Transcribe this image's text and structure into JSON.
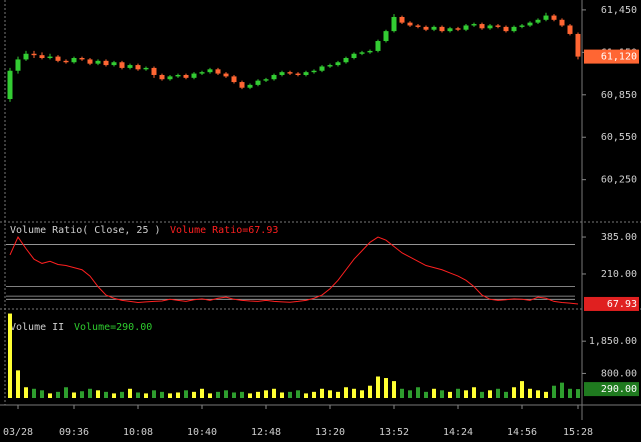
{
  "chart_data": [
    {
      "type": "candlestick",
      "up_color": "#33cc33",
      "down_color": "#ff6633",
      "ylim": [
        59965,
        61520
      ],
      "yticks": [
        {
          "value": 61450,
          "label": "61,450"
        },
        {
          "value": 61150,
          "label": "61,150"
        },
        {
          "value": 60850,
          "label": "60,850"
        },
        {
          "value": 60550,
          "label": "60,550"
        },
        {
          "value": 60250,
          "label": "60,250"
        }
      ],
      "current": {
        "value": 61120,
        "label": "61,120",
        "color": "#ff6633"
      },
      "open": [
        60820,
        61020,
        61100,
        61140,
        61130,
        61110,
        61120,
        61090,
        61080,
        61110,
        61100,
        61070,
        61090,
        61060,
        61080,
        61040,
        61060,
        61030,
        61040,
        60990,
        60960,
        60980,
        60990,
        60970,
        61000,
        61010,
        61030,
        61000,
        60980,
        60940,
        60900,
        60920,
        60950,
        60960,
        60990,
        61010,
        61000,
        60990,
        61010,
        61020,
        61050,
        61060,
        61080,
        61110,
        61140,
        61150,
        61160,
        61230,
        61300,
        61400,
        61360,
        61340,
        61330,
        61310,
        61330,
        61300,
        61320,
        61310,
        61340,
        61350,
        61320,
        61340,
        61330,
        61300,
        61330,
        61340,
        61360,
        61380,
        61410,
        61380,
        61340,
        61280
      ],
      "high": [
        61040,
        61120,
        61160,
        61160,
        61150,
        61140,
        61130,
        61100,
        61120,
        61120,
        61110,
        61100,
        61100,
        61090,
        61090,
        61070,
        61070,
        61050,
        61050,
        61000,
        60990,
        61000,
        61000,
        61010,
        61020,
        61040,
        61040,
        61010,
        60990,
        60950,
        60930,
        60960,
        60970,
        61000,
        61020,
        61020,
        61010,
        61020,
        61030,
        61060,
        61070,
        61090,
        61120,
        61150,
        61160,
        61170,
        61240,
        61310,
        61420,
        61410,
        61370,
        61350,
        61340,
        61340,
        61340,
        61330,
        61330,
        61350,
        61360,
        61360,
        61350,
        61350,
        61340,
        61340,
        61350,
        61370,
        61390,
        61430,
        61420,
        61390,
        61350,
        61290
      ],
      "low": [
        60800,
        61000,
        61090,
        61110,
        61100,
        61100,
        61080,
        61070,
        61070,
        61090,
        61060,
        61060,
        61050,
        61050,
        61030,
        61030,
        61020,
        61020,
        60970,
        60950,
        60950,
        60970,
        60960,
        60960,
        60990,
        61000,
        60990,
        60970,
        60930,
        60890,
        60890,
        60910,
        60940,
        60950,
        60980,
        60990,
        60980,
        60980,
        61000,
        61010,
        61040,
        61050,
        61070,
        61100,
        61130,
        61140,
        61150,
        61220,
        61290,
        61350,
        61330,
        61320,
        61300,
        61300,
        61290,
        61290,
        61300,
        61300,
        61330,
        61310,
        61310,
        61320,
        61290,
        61290,
        61320,
        61330,
        61350,
        61370,
        61370,
        61330,
        61270,
        61100
      ],
      "close": [
        61020,
        61100,
        61140,
        61130,
        61110,
        61120,
        61090,
        61080,
        61110,
        61100,
        61070,
        61090,
        61060,
        61080,
        61040,
        61060,
        61030,
        61040,
        60990,
        60960,
        60980,
        60990,
        60970,
        61000,
        61010,
        61030,
        61000,
        60980,
        60940,
        60900,
        60920,
        60950,
        60960,
        60990,
        61010,
        61000,
        60990,
        61010,
        61020,
        61050,
        61060,
        61080,
        61110,
        61140,
        61150,
        61160,
        61230,
        61300,
        61400,
        61360,
        61340,
        61330,
        61310,
        61330,
        61300,
        61320,
        61310,
        61340,
        61350,
        61320,
        61340,
        61330,
        61300,
        61330,
        61340,
        61360,
        61380,
        61410,
        61380,
        61340,
        61280,
        61120
      ]
    },
    {
      "type": "line",
      "title": "Volume Ratio( Close, 25 )",
      "legend_text": "Volume Ratio=67.93",
      "color": "#ff2020",
      "ylim": [
        63,
        442
      ],
      "yticks": [
        {
          "value": 385,
          "label": "385.00"
        },
        {
          "value": 210,
          "label": "210.00"
        }
      ],
      "ref_lines": [
        350,
        150,
        105,
        90
      ],
      "current": {
        "value": 67.93,
        "label": "67.93",
        "color": "#e02020"
      },
      "values": [
        300,
        385,
        330,
        280,
        260,
        270,
        255,
        250,
        240,
        230,
        200,
        150,
        110,
        95,
        85,
        80,
        75,
        78,
        80,
        82,
        90,
        85,
        80,
        88,
        92,
        85,
        95,
        100,
        90,
        85,
        82,
        80,
        85,
        80,
        78,
        76,
        80,
        85,
        95,
        110,
        140,
        180,
        230,
        280,
        320,
        360,
        385,
        370,
        340,
        310,
        290,
        270,
        250,
        240,
        230,
        215,
        200,
        180,
        150,
        110,
        90,
        85,
        88,
        92,
        90,
        85,
        100,
        95,
        80,
        75,
        72,
        67.93
      ]
    },
    {
      "type": "bar",
      "title": "Volume II",
      "legend_text": "Volume=290.00",
      "up_color": "#ffff33",
      "down_color": "#2e9e2e",
      "ylim": [
        0,
        2800
      ],
      "yticks": [
        {
          "value": 1850,
          "label": "1,850.00"
        },
        {
          "value": 800,
          "label": "800.00"
        }
      ],
      "current": {
        "value": 290,
        "label": "290.00",
        "color": "#1f7a1f"
      },
      "categories": [
        null,
        "03/28",
        null,
        null,
        null,
        null,
        null,
        null,
        "09:36",
        null,
        null,
        null,
        null,
        null,
        null,
        null,
        "10:08",
        null,
        null,
        null,
        null,
        null,
        null,
        null,
        "10:40",
        null,
        null,
        null,
        null,
        null,
        null,
        null,
        "12:48",
        null,
        null,
        null,
        null,
        null,
        null,
        null,
        "13:20",
        null,
        null,
        null,
        null,
        null,
        null,
        null,
        "13:52",
        null,
        null,
        null,
        null,
        null,
        null,
        null,
        "14:24",
        null,
        null,
        null,
        null,
        null,
        null,
        null,
        "14:56",
        null,
        null,
        null,
        null,
        null,
        null,
        "15:28"
      ],
      "values": [
        2750,
        900,
        350,
        300,
        250,
        150,
        200,
        350,
        180,
        220,
        300,
        250,
        200,
        150,
        200,
        300,
        180,
        150,
        250,
        200,
        150,
        180,
        250,
        200,
        300,
        150,
        200,
        250,
        180,
        200,
        150,
        200,
        250,
        300,
        180,
        200,
        250,
        150,
        200,
        300,
        250,
        200,
        350,
        300,
        250,
        400,
        700,
        650,
        550,
        300,
        250,
        350,
        200,
        300,
        250,
        200,
        300,
        250,
        350,
        200,
        250,
        300,
        200,
        350,
        550,
        300,
        250,
        200,
        400,
        500,
        300,
        290
      ]
    }
  ]
}
